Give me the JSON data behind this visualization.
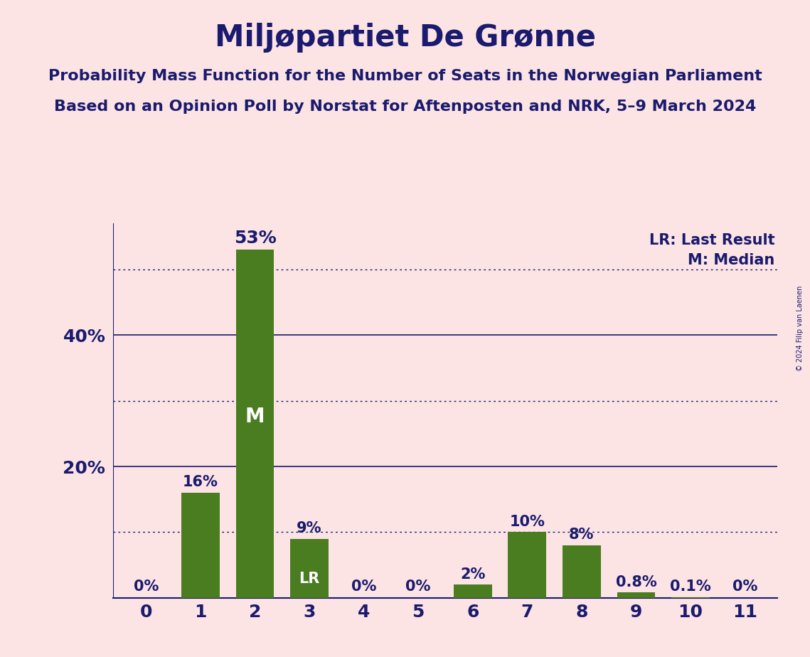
{
  "title": "Miljøpartiet De Grønne",
  "subtitle1": "Probability Mass Function for the Number of Seats in the Norwegian Parliament",
  "subtitle2": "Based on an Opinion Poll by Norstat for Aftenposten and NRK, 5–9 March 2024",
  "copyright": "© 2024 Filip van Laenen",
  "categories": [
    0,
    1,
    2,
    3,
    4,
    5,
    6,
    7,
    8,
    9,
    10,
    11
  ],
  "values": [
    0.0,
    16.0,
    53.0,
    9.0,
    0.0,
    0.0,
    2.0,
    10.0,
    8.0,
    0.8,
    0.1,
    0.0
  ],
  "labels": [
    "0%",
    "16%",
    "53%",
    "9%",
    "0%",
    "0%",
    "2%",
    "10%",
    "8%",
    "0.8%",
    "0.1%",
    "0%"
  ],
  "bar_color": "#4a7c20",
  "background_color": "#fce4e4",
  "text_color": "#1a1a6e",
  "bar_label_color_inside": "#ffffff",
  "median_bar": 2,
  "lr_bar": 3,
  "legend_lr": "LR: Last Result",
  "legend_m": "M: Median",
  "ylim": [
    0,
    57
  ],
  "ytick_positions": [
    20,
    40
  ],
  "ytick_labels": [
    "20%",
    "40%"
  ],
  "solid_gridlines": [
    20,
    40
  ],
  "dotted_gridlines": [
    10,
    30,
    50
  ],
  "title_fontsize": 30,
  "subtitle_fontsize": 16,
  "axis_tick_fontsize": 18,
  "bar_label_fontsize": 15,
  "legend_fontsize": 15,
  "copyright_fontsize": 7
}
